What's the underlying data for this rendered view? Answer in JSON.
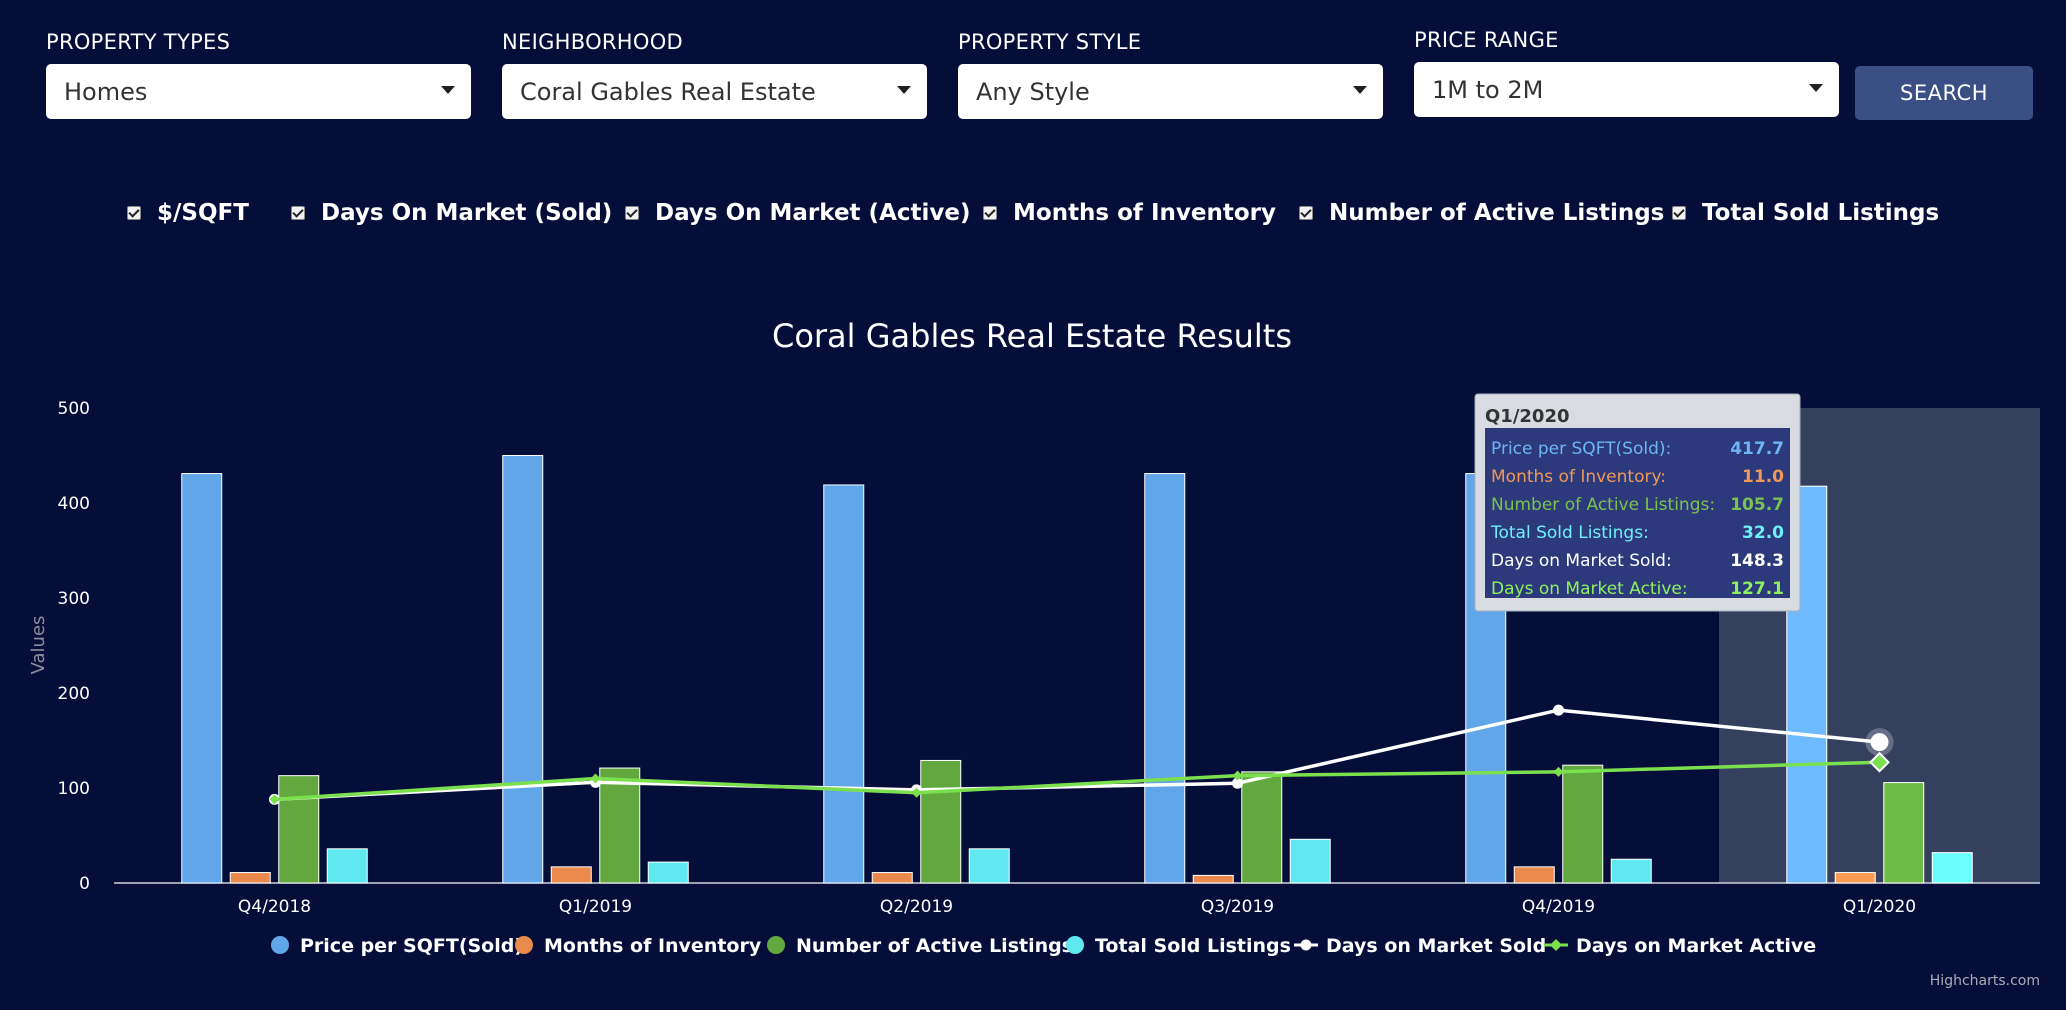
{
  "filters": {
    "property_types": {
      "label": "PROPERTY TYPES",
      "value": "Homes"
    },
    "neighborhood": {
      "label": "NEIGHBORHOOD",
      "value": "Coral Gables Real Estate"
    },
    "property_style": {
      "label": "PROPERTY STYLE",
      "value": "Any Style"
    },
    "price_range": {
      "label": "PRICE RANGE",
      "value": "1M to 2M"
    },
    "search_label": "SEARCH"
  },
  "toggles": [
    {
      "label": "$/SQFT",
      "checked": true
    },
    {
      "label": "Days On Market (Sold)",
      "checked": true
    },
    {
      "label": "Days On Market (Active)",
      "checked": true
    },
    {
      "label": "Months of Inventory",
      "checked": true
    },
    {
      "label": "Number of Active Listings",
      "checked": true
    },
    {
      "label": "Total Sold Listings",
      "checked": true
    }
  ],
  "credit": "Highcharts.com",
  "chart_data": {
    "type": "bar",
    "title": "Coral Gables Real Estate Results",
    "ylabel": "Values",
    "ylim": [
      0,
      500
    ],
    "yticks": [
      0,
      100,
      200,
      300,
      400,
      500
    ],
    "categories": [
      "Q4/2018",
      "Q1/2019",
      "Q2/2019",
      "Q3/2019",
      "Q4/2019",
      "Q1/2020"
    ],
    "series": [
      {
        "name": "Price per SQFT(Sold)",
        "type": "column",
        "color": "#62a6ea",
        "values": [
          431,
          450,
          419,
          431,
          431,
          417.7
        ]
      },
      {
        "name": "Months of Inventory",
        "type": "column",
        "color": "#e98a4c",
        "values": [
          11,
          17,
          11,
          8,
          17,
          11.0
        ]
      },
      {
        "name": "Number of Active Listings",
        "type": "column",
        "color": "#62a83f",
        "values": [
          113,
          121,
          129,
          117,
          124,
          105.7
        ]
      },
      {
        "name": "Total Sold Listings",
        "type": "column",
        "color": "#5fe8f0",
        "values": [
          36,
          22,
          36,
          46,
          25,
          32.0
        ]
      },
      {
        "name": "Days on Market Sold",
        "type": "line",
        "color": "#ffffff",
        "values": [
          88,
          106,
          98,
          105,
          182,
          148.3
        ]
      },
      {
        "name": "Days on Market Active",
        "type": "line",
        "color": "#7be04d",
        "values": [
          88,
          110,
          95,
          113,
          117,
          127.1
        ]
      }
    ],
    "legend_position": "bottom-center",
    "tooltip": {
      "title": "Q1/2020",
      "rows": [
        {
          "label": "Price per SQFT(Sold):",
          "value": "417.7",
          "color": "#6fb4f7"
        },
        {
          "label": "Months of Inventory:",
          "value": "11.0",
          "color": "#f09858"
        },
        {
          "label": "Number of Active Listings:",
          "value": "105.7",
          "color": "#78c34f"
        },
        {
          "label": "Total Sold Listings:",
          "value": "32.0",
          "color": "#6ff0f7"
        },
        {
          "label": "Days on Market Sold:",
          "value": "148.3",
          "color": "#ffffff"
        },
        {
          "label": "Days on Market Active:",
          "value": "127.1",
          "color": "#8ef05e"
        }
      ]
    }
  }
}
